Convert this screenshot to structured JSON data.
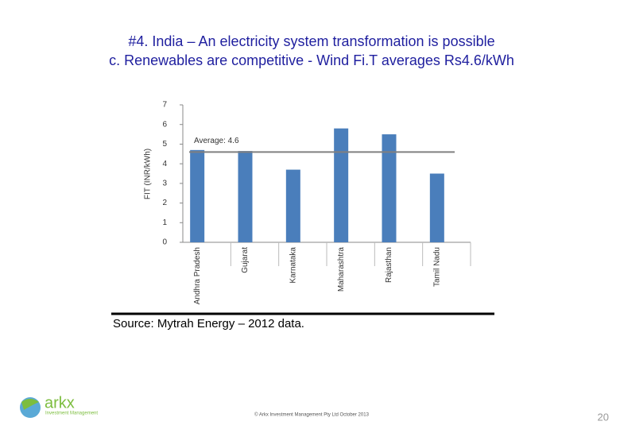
{
  "slide": {
    "title_lines": [
      "#4. India – An electricity system transformation is possible",
      "c. Renewables are competitive - Wind Fi.T averages Rs4.6/kWh"
    ],
    "source": "Source: Mytrah Energy – 2012 data.",
    "footer": "© Arkx Investment Management Pty Ltd October 2013",
    "page_number": "20",
    "logo": {
      "name": "arkx",
      "tagline": "Investment Management"
    }
  },
  "chart_data": {
    "type": "bar",
    "y_label": "FIT (INR/kWh)",
    "categories": [
      "Andhra Pradesh",
      "Gujarat",
      "Karnataka",
      "Maharashtra",
      "Rajasthan",
      "Tamil Nadu"
    ],
    "values": [
      4.7,
      4.65,
      3.7,
      5.8,
      5.5,
      3.5
    ],
    "color": "#4a7ebb",
    "ylim": [
      0,
      7
    ],
    "yticks": [
      0,
      1,
      2,
      3,
      4,
      5,
      6,
      7
    ],
    "reference_line": {
      "value": 4.6,
      "label": "Average: 4.6",
      "color": "#808080"
    }
  }
}
